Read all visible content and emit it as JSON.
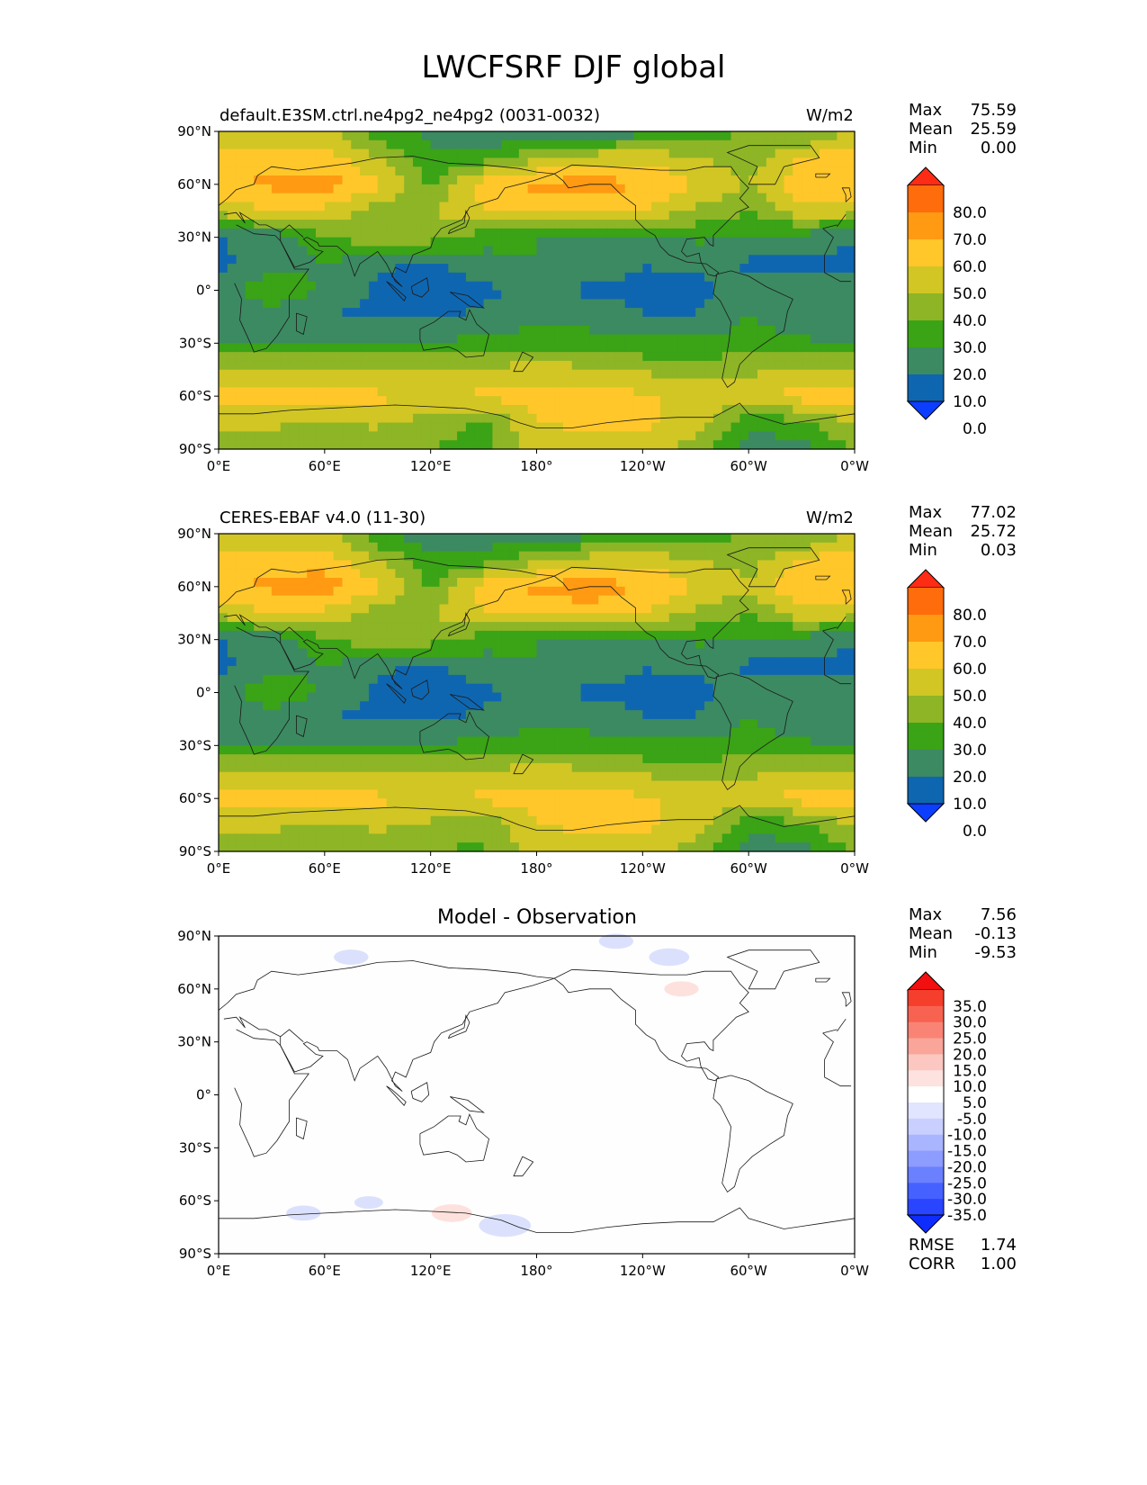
{
  "title": "LWCFSRF DJF global",
  "colors": {
    "seq": [
      "#0c3eff",
      "#0f66b0",
      "#3c8a62",
      "#3aa316",
      "#8db526",
      "#d1c624",
      "#ffc72a",
      "#ff9a12",
      "#fe6c0c",
      "#fe2c14"
    ],
    "diff": [
      "#0f2cff",
      "#2a45ff",
      "#4561ff",
      "#6a80ff",
      "#8d9cff",
      "#aab5ff",
      "#c9d0ff",
      "#e1e5ff",
      "#ffffff",
      "#fde2df",
      "#fbc7c0",
      "#faa59a",
      "#f98475",
      "#f76350",
      "#f53e2b",
      "#f20f0f"
    ],
    "map_rgb": [
      {
        "v": 0,
        "rgb": [
          15,
          102,
          176
        ]
      },
      {
        "v": 10,
        "rgb": [
          15,
          102,
          176
        ]
      },
      {
        "v": 20,
        "rgb": [
          60,
          138,
          98
        ]
      },
      {
        "v": 30,
        "rgb": [
          58,
          163,
          22
        ]
      },
      {
        "v": 40,
        "rgb": [
          141,
          181,
          38
        ]
      },
      {
        "v": 50,
        "rgb": [
          209,
          198,
          36
        ]
      },
      {
        "v": 60,
        "rgb": [
          255,
          199,
          42
        ]
      },
      {
        "v": 70,
        "rgb": [
          255,
          154,
          18
        ]
      },
      {
        "v": 80,
        "rgb": [
          254,
          108,
          12
        ]
      }
    ]
  },
  "ticks": {
    "lat": [
      "90°N",
      "60°N",
      "30°N",
      "0°",
      "30°S",
      "60°S",
      "90°S"
    ],
    "lon": [
      "0°E",
      "60°E",
      "120°E",
      "180°",
      "120°W",
      "60°W",
      "0°W"
    ]
  },
  "panels": [
    {
      "id": "model",
      "left_label": "default.E3SM.ctrl.ne4pg2_ne4pg2 (0031-0032)",
      "units": "W/m2",
      "stats": {
        "max": "75.59",
        "mean": "25.59",
        "min": "0.00"
      },
      "stat_labels": {
        "max": "Max",
        "mean": "Mean",
        "min": "Min"
      },
      "colorbar": {
        "type": "seq",
        "labels": [
          "80.0",
          "70.0",
          "60.0",
          "50.0",
          "40.0",
          "30.0",
          "20.0",
          "10.0",
          "0.0"
        ]
      }
    },
    {
      "id": "obs",
      "left_label": "CERES-EBAF v4.0 (11-30)",
      "units": "W/m2",
      "stats": {
        "max": "77.02",
        "mean": "25.72",
        "min": "0.03"
      },
      "stat_labels": {
        "max": "Max",
        "mean": "Mean",
        "min": "Min"
      },
      "colorbar": {
        "type": "seq",
        "labels": [
          "80.0",
          "70.0",
          "60.0",
          "50.0",
          "40.0",
          "30.0",
          "20.0",
          "10.0",
          "0.0"
        ]
      }
    },
    {
      "id": "diff",
      "center_title": "Model - Observation",
      "stats": {
        "max": "7.56",
        "mean": "-0.13",
        "min": "-9.53"
      },
      "stat_labels": {
        "max": "Max",
        "mean": "Mean",
        "min": "Min"
      },
      "metrics": {
        "rmse_label": "RMSE",
        "rmse": "1.74",
        "corr_label": "CORR",
        "corr": "1.00"
      },
      "colorbar": {
        "type": "diff",
        "labels": [
          "35.0",
          "30.0",
          "25.0",
          "20.0",
          "15.0",
          "10.0",
          "5.0",
          "-5.0",
          "-10.0",
          "-15.0",
          "-20.0",
          "-25.0",
          "-30.0",
          "-35.0"
        ]
      }
    }
  ],
  "chart_data": [
    {
      "type": "heatmap",
      "title": "default.E3SM.ctrl.ne4pg2_ne4pg2 (0031-0032)",
      "units": "W/m2",
      "xlim": [
        0,
        360
      ],
      "ylim": [
        -90,
        90
      ],
      "levels": [
        0,
        10,
        20,
        30,
        40,
        50,
        60,
        70,
        80
      ],
      "lat": [
        90,
        75,
        60,
        45,
        30,
        15,
        0,
        -15,
        -30,
        -45,
        -60,
        -75,
        -90
      ],
      "lon": [
        0,
        30,
        60,
        90,
        120,
        150,
        180,
        210,
        240,
        270,
        300,
        330,
        360
      ],
      "values": [
        [
          40,
          42,
          45,
          22,
          18,
          12,
          10,
          12,
          15,
          25,
          30,
          28,
          40
        ],
        [
          60,
          55,
          55,
          40,
          22,
          25,
          38,
          45,
          48,
          40,
          35,
          50,
          60
        ],
        [
          58,
          62,
          65,
          52,
          28,
          55,
          62,
          65,
          60,
          50,
          40,
          58,
          58
        ],
        [
          45,
          50,
          48,
          35,
          40,
          50,
          55,
          55,
          50,
          38,
          30,
          48,
          45
        ],
        [
          10,
          12,
          28,
          38,
          35,
          25,
          20,
          18,
          15,
          22,
          20,
          15,
          10
        ],
        [
          8,
          15,
          20,
          12,
          8,
          15,
          20,
          15,
          10,
          12,
          8,
          8,
          8
        ],
        [
          15,
          28,
          18,
          8,
          6,
          8,
          12,
          8,
          8,
          6,
          18,
          12,
          15
        ],
        [
          12,
          15,
          10,
          8,
          8,
          12,
          18,
          15,
          10,
          10,
          20,
          12,
          12
        ],
        [
          18,
          20,
          22,
          22,
          22,
          22,
          25,
          25,
          22,
          22,
          25,
          22,
          18
        ],
        [
          42,
          40,
          42,
          40,
          38,
          42,
          45,
          42,
          38,
          35,
          38,
          40,
          42
        ],
        [
          55,
          55,
          55,
          52,
          50,
          52,
          55,
          55,
          52,
          45,
          48,
          55,
          55
        ],
        [
          42,
          42,
          40,
          42,
          35,
          28,
          50,
          52,
          52,
          45,
          22,
          28,
          42
        ],
        [
          32,
          32,
          32,
          32,
          30,
          25,
          45,
          45,
          45,
          35,
          15,
          15,
          32
        ]
      ]
    },
    {
      "type": "heatmap",
      "title": "CERES-EBAF v4.0 (11-30)",
      "units": "W/m2",
      "xlim": [
        0,
        360
      ],
      "ylim": [
        -90,
        90
      ],
      "levels": [
        0,
        10,
        20,
        30,
        40,
        50,
        60,
        70,
        80
      ],
      "lat": [
        90,
        75,
        60,
        45,
        30,
        15,
        0,
        -15,
        -30,
        -45,
        -60,
        -75,
        -90
      ],
      "lon": [
        0,
        30,
        60,
        90,
        120,
        150,
        180,
        210,
        240,
        270,
        300,
        330,
        360
      ],
      "values": [
        [
          40,
          42,
          45,
          22,
          15,
          12,
          12,
          16,
          18,
          25,
          30,
          28,
          40
        ],
        [
          60,
          55,
          55,
          40,
          22,
          25,
          38,
          45,
          48,
          40,
          35,
          50,
          60
        ],
        [
          58,
          62,
          66,
          52,
          28,
          55,
          62,
          66,
          60,
          50,
          42,
          60,
          58
        ],
        [
          45,
          50,
          48,
          35,
          40,
          50,
          55,
          55,
          50,
          38,
          30,
          48,
          45
        ],
        [
          10,
          12,
          28,
          38,
          35,
          25,
          20,
          18,
          15,
          22,
          20,
          15,
          10
        ],
        [
          8,
          15,
          20,
          12,
          8,
          15,
          20,
          15,
          10,
          12,
          8,
          8,
          8
        ],
        [
          15,
          28,
          18,
          8,
          6,
          8,
          12,
          8,
          8,
          6,
          18,
          12,
          15
        ],
        [
          12,
          15,
          10,
          8,
          8,
          12,
          18,
          15,
          10,
          10,
          20,
          12,
          12
        ],
        [
          18,
          20,
          22,
          22,
          22,
          22,
          25,
          25,
          22,
          22,
          25,
          22,
          18
        ],
        [
          42,
          40,
          42,
          40,
          38,
          42,
          45,
          42,
          38,
          35,
          38,
          40,
          42
        ],
        [
          55,
          55,
          55,
          52,
          50,
          52,
          55,
          55,
          52,
          45,
          48,
          55,
          55
        ],
        [
          42,
          42,
          40,
          42,
          38,
          32,
          50,
          52,
          52,
          45,
          22,
          28,
          42
        ],
        [
          32,
          32,
          32,
          32,
          30,
          28,
          45,
          45,
          45,
          35,
          15,
          15,
          32
        ]
      ]
    },
    {
      "type": "heatmap",
      "title": "Model - Observation",
      "xlim": [
        0,
        360
      ],
      "ylim": [
        -90,
        90
      ],
      "levels": [
        -35,
        -30,
        -25,
        -20,
        -15,
        -10,
        -5,
        5,
        10,
        15,
        20,
        25,
        30,
        35
      ],
      "anomalies": [
        {
          "lon": 225,
          "lat": 87,
          "value": -6
        },
        {
          "lon": 255,
          "lat": 78,
          "value": -7
        },
        {
          "lon": 75,
          "lat": 78,
          "value": -6
        },
        {
          "lon": 262,
          "lat": 60,
          "value": 6
        },
        {
          "lon": 48,
          "lat": -67,
          "value": -6
        },
        {
          "lon": 85,
          "lat": -61,
          "value": -5
        },
        {
          "lon": 132,
          "lat": -67,
          "value": 7
        },
        {
          "lon": 162,
          "lat": -74,
          "value": -9
        }
      ]
    }
  ]
}
